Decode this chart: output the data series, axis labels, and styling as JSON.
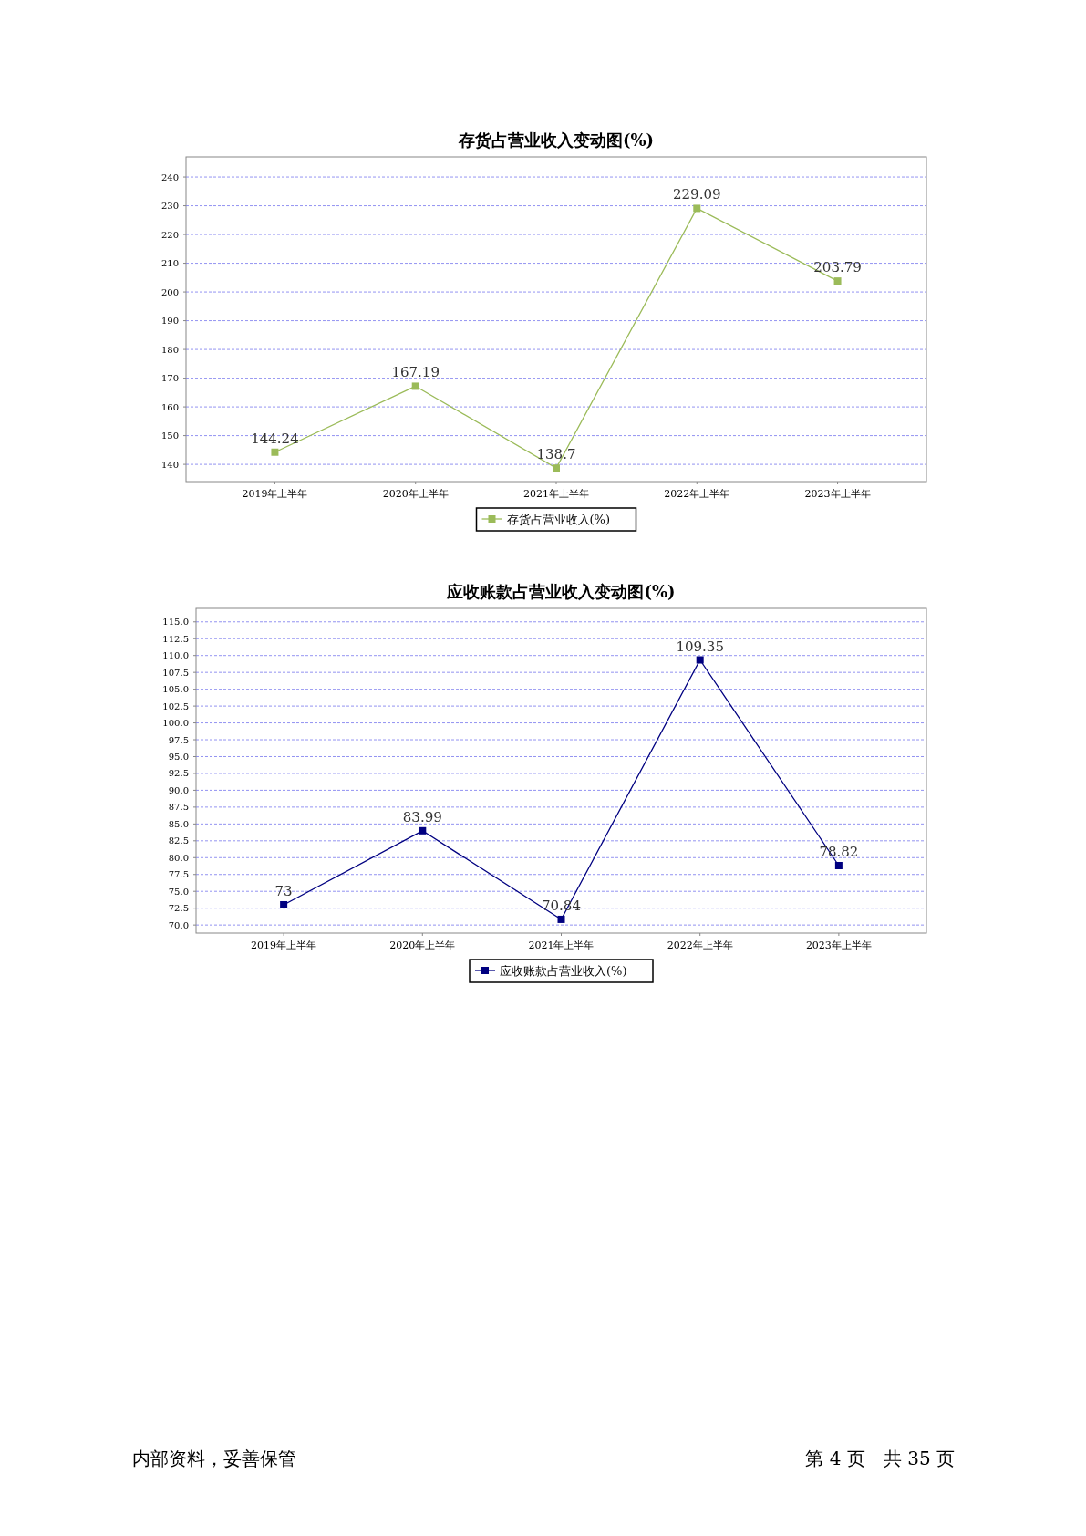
{
  "chart_data": [
    {
      "type": "line",
      "title": "存货占营业收入变动图(%)",
      "categories": [
        "2019年上半年",
        "2020年上半年",
        "2021年上半年",
        "2022年上半年",
        "2023年上半年"
      ],
      "series": [
        {
          "name": "存货占营业收入(%)",
          "color": "#9bbb59",
          "values": [
            144.24,
            167.19,
            138.7,
            229.09,
            203.79
          ]
        }
      ],
      "ylim": [
        134,
        247
      ],
      "yticks": [
        140,
        150,
        160,
        170,
        180,
        190,
        200,
        210,
        220,
        230,
        240
      ],
      "grid": "y",
      "legend": "bottom",
      "marker": "square",
      "line_style": "solid",
      "data_labels": true
    },
    {
      "type": "line",
      "title": "应收账款占营业收入变动图(%)",
      "categories": [
        "2019年上半年",
        "2020年上半年",
        "2021年上半年",
        "2022年上半年",
        "2023年上半年"
      ],
      "series": [
        {
          "name": "应收账款占营业收入(%)",
          "color": "#000080",
          "values": [
            73,
            83.99,
            70.84,
            109.35,
            78.82
          ]
        }
      ],
      "ylim": [
        68.8,
        117
      ],
      "yticks": [
        {
          "value": 70,
          "label": "70.0"
        },
        {
          "value": 72.5,
          "label": "72.5"
        },
        {
          "value": 75,
          "label": "75.0"
        },
        {
          "value": 77.5,
          "label": "77.5"
        },
        {
          "value": 80,
          "label": "80.0"
        },
        {
          "value": 82.5,
          "label": "82.5"
        },
        {
          "value": 85,
          "label": "85.0"
        },
        {
          "value": 87.5,
          "label": "87.5"
        },
        {
          "value": 90,
          "label": "90.0"
        },
        {
          "value": 92.5,
          "label": "92.5"
        },
        {
          "value": 95,
          "label": "95.0"
        },
        {
          "value": 97.5,
          "label": "97.5"
        },
        {
          "value": 100,
          "label": "100.0"
        },
        {
          "value": 102.5,
          "label": "102.5"
        },
        {
          "value": 105,
          "label": "105.0"
        },
        {
          "value": 107.5,
          "label": "107.5"
        },
        {
          "value": 110,
          "label": "110.0"
        },
        {
          "value": 112.5,
          "label": "112.5"
        },
        {
          "value": 115,
          "label": "115.0"
        }
      ],
      "grid": "y",
      "legend": "bottom",
      "marker": "square",
      "line_style": "solid",
      "data_labels": true,
      "annotations": [
        "内部资料，妥善保管",
        "第 4 页　共 35 页"
      ]
    }
  ]
}
